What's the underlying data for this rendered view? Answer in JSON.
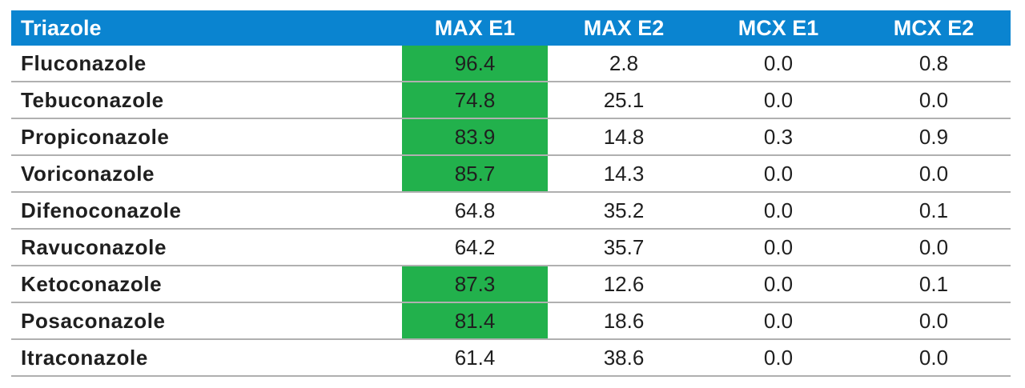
{
  "table": {
    "highlight_color": "#22b14c",
    "header_color": "#0a84d0",
    "headers": [
      "Triazole",
      "MAX E1",
      "MAX E2",
      "MCX E1",
      "MCX E2"
    ],
    "rows": [
      {
        "name": "Fluconazole",
        "values": [
          "96.4",
          "2.8",
          "0.0",
          "0.8"
        ],
        "max_e1_highlighted": true
      },
      {
        "name": "Tebuconazole",
        "values": [
          "74.8",
          "25.1",
          "0.0",
          "0.0"
        ],
        "max_e1_highlighted": true
      },
      {
        "name": "Propiconazole",
        "values": [
          "83.9",
          "14.8",
          "0.3",
          "0.9"
        ],
        "max_e1_highlighted": true
      },
      {
        "name": "Voriconazole",
        "values": [
          "85.7",
          "14.3",
          "0.0",
          "0.0"
        ],
        "max_e1_highlighted": true
      },
      {
        "name": "Difenoconazole",
        "values": [
          "64.8",
          "35.2",
          "0.0",
          "0.1"
        ],
        "max_e1_highlighted": false
      },
      {
        "name": "Ravuconazole",
        "values": [
          "64.2",
          "35.7",
          "0.0",
          "0.0"
        ],
        "max_e1_highlighted": false
      },
      {
        "name": "Ketoconazole",
        "values": [
          "87.3",
          "12.6",
          "0.0",
          "0.1"
        ],
        "max_e1_highlighted": true
      },
      {
        "name": "Posaconazole",
        "values": [
          "81.4",
          "18.6",
          "0.0",
          "0.0"
        ],
        "max_e1_highlighted": true
      },
      {
        "name": "Itraconazole",
        "values": [
          "61.4",
          "38.6",
          "0.0",
          "0.0"
        ],
        "max_e1_highlighted": false
      }
    ]
  }
}
